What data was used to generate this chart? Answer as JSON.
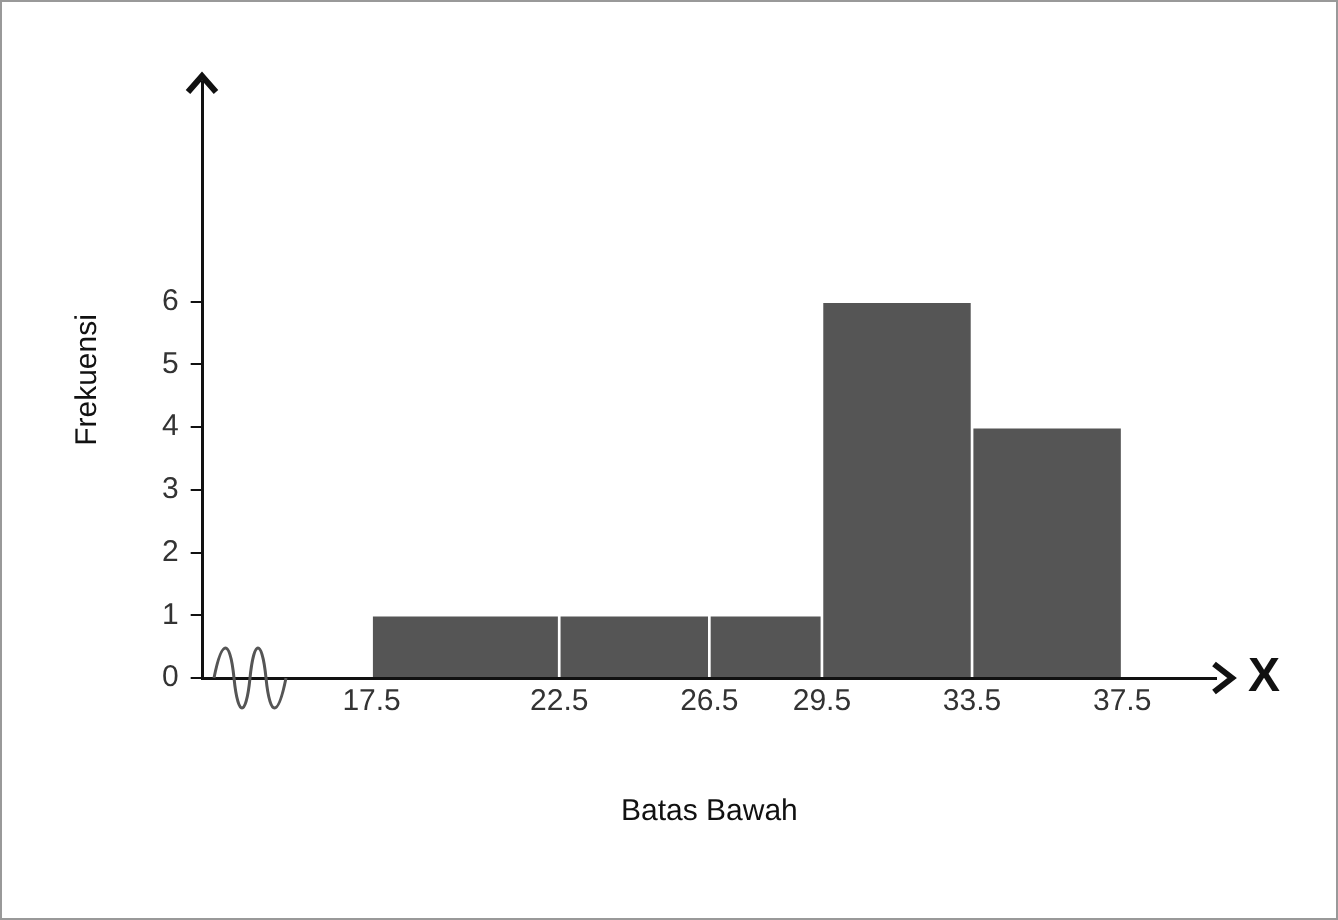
{
  "chart_data": {
    "type": "histogram",
    "xlabel": "Batas Bawah",
    "ylabel": "Frekuensi",
    "bins": [
      17.5,
      22.5,
      26.5,
      29.5,
      33.5,
      37.5
    ],
    "values": [
      1,
      1,
      1,
      6,
      4
    ],
    "color": "#555555",
    "xlim": [
      13,
      40
    ],
    "xticks": [
      17.5,
      22.5,
      26.5,
      29.5,
      33.5,
      37.5
    ],
    "ylim": [
      0,
      9.5
    ],
    "yticks": [
      0,
      1,
      2,
      3,
      4,
      5,
      6
    ],
    "annotations": [
      "X"
    ],
    "grid": false,
    "legend": false
  }
}
